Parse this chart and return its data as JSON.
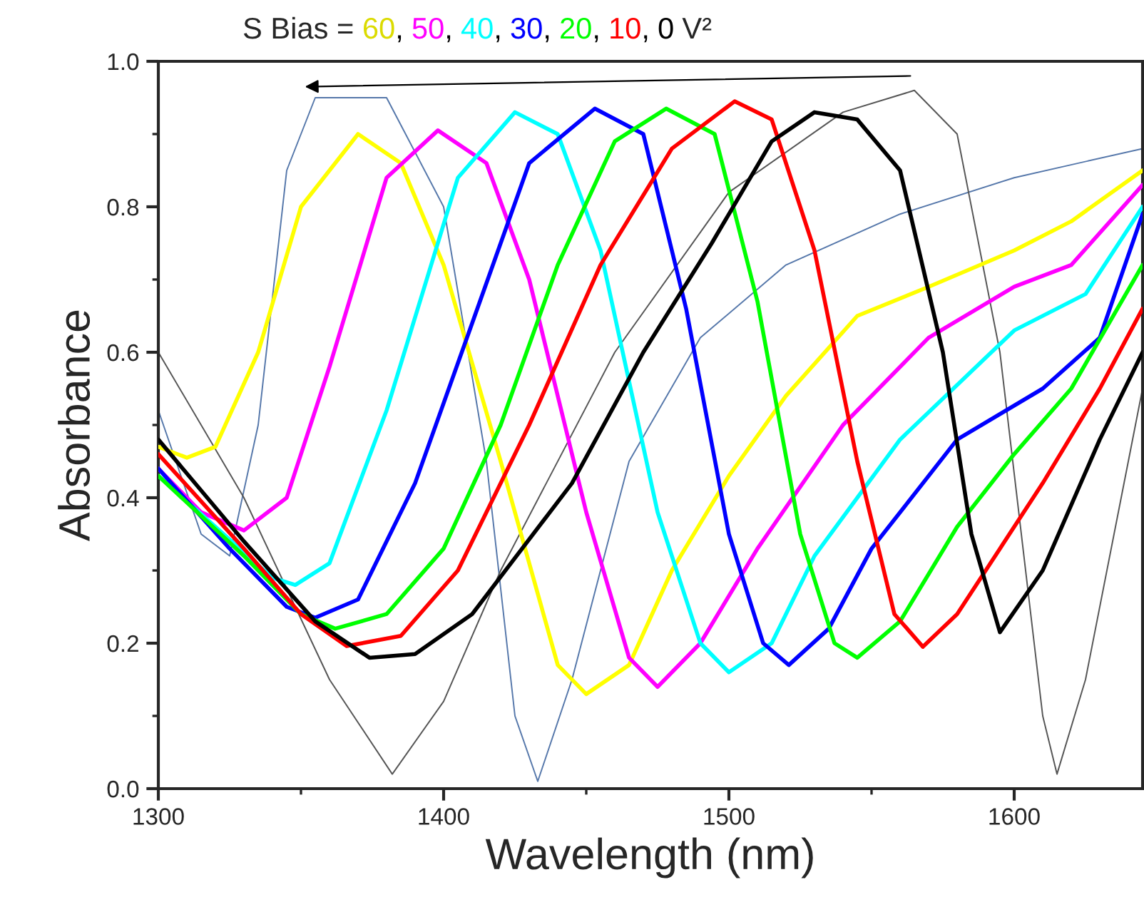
{
  "chart_data": {
    "type": "line",
    "xlabel": "Wavelength (nm)",
    "ylabel": "Absorbance",
    "annotations": [
      "S Bias = ",
      ",",
      "V²"
    ],
    "xlim": [
      1300,
      1645
    ],
    "xticks": [
      1300,
      1400,
      1500,
      1600
    ],
    "ylim": [
      0,
      1.0
    ],
    "yticks": [
      {
        "value": 0,
        "label": "0.0"
      },
      {
        "value": 0.2,
        "label": "0.2"
      },
      {
        "value": 0.4,
        "label": "0.4"
      },
      {
        "value": 0.6,
        "label": "0.6"
      },
      {
        "value": 0.8,
        "label": "0.8"
      },
      {
        "value": 1.0,
        "label": "1.0"
      }
    ],
    "grid": false,
    "line_style": "solid",
    "marker": "none",
    "series": [
      {
        "color": "#5577aa",
        "x": [
          1300,
          1315,
          1325,
          1335,
          1345,
          1355,
          1380,
          1400,
          1415,
          1425,
          1433,
          1445,
          1465,
          1490,
          1520,
          1560,
          1600,
          1645
        ],
        "values": [
          0.52,
          0.35,
          0.32,
          0.5,
          0.85,
          0.95,
          0.95,
          0.8,
          0.45,
          0.1,
          0.01,
          0.15,
          0.45,
          0.62,
          0.72,
          0.79,
          0.84,
          0.88
        ]
      },
      {
        "color": "#555555",
        "x": [
          1300,
          1330,
          1360,
          1382,
          1400,
          1420,
          1460,
          1500,
          1540,
          1565,
          1580,
          1595,
          1610,
          1615,
          1625,
          1640,
          1645
        ],
        "values": [
          0.6,
          0.4,
          0.15,
          0.02,
          0.12,
          0.3,
          0.6,
          0.82,
          0.93,
          0.96,
          0.9,
          0.6,
          0.1,
          0.02,
          0.15,
          0.45,
          0.55
        ]
      },
      {
        "name": "60",
        "color": "#ffff00",
        "x": [
          1300,
          1310,
          1320,
          1335,
          1350,
          1370,
          1385,
          1400,
          1420,
          1440,
          1450,
          1465,
          1480,
          1500,
          1520,
          1545,
          1570,
          1600,
          1620,
          1645
        ],
        "values": [
          0.47,
          0.455,
          0.47,
          0.6,
          0.8,
          0.9,
          0.86,
          0.72,
          0.45,
          0.17,
          0.13,
          0.17,
          0.3,
          0.43,
          0.54,
          0.65,
          0.69,
          0.74,
          0.78,
          0.85
        ]
      },
      {
        "name": "50",
        "color": "#ff00ff",
        "x": [
          1300,
          1315,
          1330,
          1345,
          1360,
          1380,
          1398,
          1415,
          1430,
          1450,
          1465,
          1475,
          1490,
          1510,
          1540,
          1570,
          1600,
          1620,
          1645
        ],
        "values": [
          0.44,
          0.38,
          0.355,
          0.4,
          0.58,
          0.84,
          0.905,
          0.86,
          0.7,
          0.38,
          0.18,
          0.14,
          0.2,
          0.33,
          0.5,
          0.62,
          0.69,
          0.72,
          0.83
        ]
      },
      {
        "name": "40",
        "color": "#00ffff",
        "x": [
          1300,
          1320,
          1340,
          1348,
          1360,
          1380,
          1405,
          1425,
          1440,
          1455,
          1475,
          1490,
          1500,
          1515,
          1530,
          1560,
          1600,
          1625,
          1645
        ],
        "values": [
          0.43,
          0.36,
          0.29,
          0.28,
          0.31,
          0.52,
          0.84,
          0.93,
          0.9,
          0.74,
          0.38,
          0.2,
          0.16,
          0.2,
          0.32,
          0.48,
          0.63,
          0.68,
          0.8
        ]
      },
      {
        "name": "30",
        "color": "#0000ff",
        "x": [
          1300,
          1325,
          1345,
          1355,
          1370,
          1390,
          1410,
          1430,
          1453,
          1470,
          1485,
          1500,
          1512,
          1521,
          1535,
          1550,
          1580,
          1610,
          1630,
          1645
        ],
        "values": [
          0.44,
          0.33,
          0.25,
          0.235,
          0.26,
          0.42,
          0.64,
          0.86,
          0.935,
          0.9,
          0.66,
          0.35,
          0.2,
          0.17,
          0.22,
          0.33,
          0.48,
          0.55,
          0.62,
          0.79
        ]
      },
      {
        "name": "20",
        "color": "#00ff00",
        "x": [
          1300,
          1330,
          1350,
          1362,
          1380,
          1400,
          1420,
          1440,
          1460,
          1478,
          1495,
          1510,
          1525,
          1537,
          1545,
          1560,
          1580,
          1600,
          1620,
          1645
        ],
        "values": [
          0.43,
          0.32,
          0.24,
          0.22,
          0.24,
          0.33,
          0.5,
          0.72,
          0.89,
          0.935,
          0.9,
          0.67,
          0.35,
          0.2,
          0.18,
          0.23,
          0.36,
          0.46,
          0.55,
          0.72
        ]
      },
      {
        "name": "10",
        "color": "#ff0000",
        "x": [
          1300,
          1330,
          1350,
          1366,
          1385,
          1405,
          1430,
          1455,
          1480,
          1502,
          1515,
          1530,
          1545,
          1558,
          1568,
          1580,
          1595,
          1610,
          1630,
          1645
        ],
        "values": [
          0.46,
          0.33,
          0.24,
          0.196,
          0.21,
          0.3,
          0.5,
          0.72,
          0.88,
          0.945,
          0.92,
          0.74,
          0.45,
          0.24,
          0.195,
          0.24,
          0.33,
          0.42,
          0.55,
          0.66
        ]
      },
      {
        "name": "0",
        "color": "#000000",
        "x": [
          1300,
          1330,
          1355,
          1374,
          1390,
          1410,
          1445,
          1470,
          1494,
          1515,
          1530,
          1545,
          1560,
          1575,
          1585,
          1595,
          1610,
          1630,
          1645
        ],
        "values": [
          0.48,
          0.34,
          0.23,
          0.18,
          0.185,
          0.24,
          0.42,
          0.6,
          0.75,
          0.89,
          0.93,
          0.92,
          0.85,
          0.6,
          0.35,
          0.215,
          0.3,
          0.48,
          0.6
        ]
      }
    ]
  }
}
